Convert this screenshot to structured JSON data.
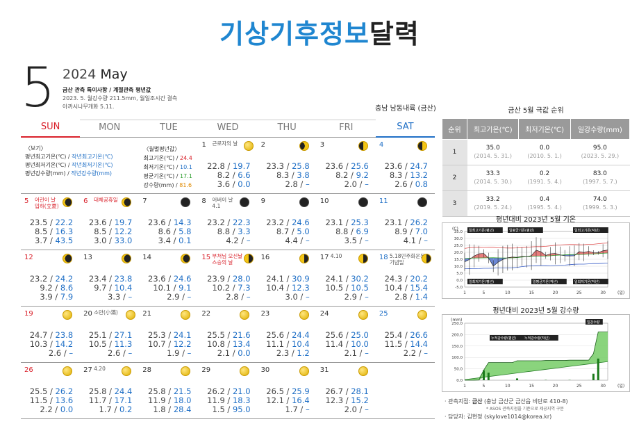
{
  "title_blue": "기상기후정보",
  "title_dark": "달력",
  "month_big": "5",
  "year": "2024",
  "month_name": "May",
  "notes": {
    "heading": "금산 관측 특이사항 / 계절관측 평년값",
    "line1": "2023. 5. 월강수량 211.5mm, 월일조시간 결측",
    "line2": "아까시나무개화 5.11."
  },
  "region": "충남 남동내륙 (금산)",
  "weekdays": [
    "SUN",
    "MON",
    "TUE",
    "WED",
    "THU",
    "FRI",
    "SAT"
  ],
  "legend": {
    "title": "〈보기〉",
    "l1a": "평년최고기온(℃) / ",
    "l1b": "작년최고기온(℃)",
    "l2a": "평년최저기온(℃) / ",
    "l2b": "작년최저기온(℃)",
    "l3a": "평년강수량(mm) / ",
    "l3b": "작년강수량(mm)"
  },
  "monthly": {
    "title": "〈월별평년값〉",
    "r1": "최고기온(℃) /",
    "v1": "24.4",
    "r2": "최저기온(℃) /",
    "v2": "10.1",
    "r3": "평균기온(℃) /",
    "v3": "17.1",
    "r4": "강수량(mm) /",
    "v4": "81.6"
  },
  "days": [
    {
      "d": "1",
      "hol": "근로자의 날",
      "hi": "22.8",
      "hi2": "19.7",
      "lo": "8.2",
      "lo2": "6.6",
      "pr": "3.6",
      "pr2": "0.0"
    },
    {
      "d": "2",
      "hol": "",
      "hi": "23.3",
      "hi2": "25.8",
      "lo": "8.3",
      "lo2": "3.8",
      "pr": "2.8",
      "pr2": "–"
    },
    {
      "d": "3",
      "hol": "",
      "hi": "23.6",
      "hi2": "25.6",
      "lo": "8.2",
      "lo2": "9.2",
      "pr": "2.0",
      "pr2": "–"
    },
    {
      "d": "4",
      "hol": "",
      "hi": "23.6",
      "hi2": "24.7",
      "lo": "8.3",
      "lo2": "13.2",
      "pr": "2.6",
      "pr2": "0.8"
    },
    {
      "d": "5",
      "hol": "어린이 날",
      "hol2": "입하(立夏)",
      "hi": "23.5",
      "hi2": "22.2",
      "lo": "8.5",
      "lo2": "16.3",
      "pr": "3.7",
      "pr2": "43.5"
    },
    {
      "d": "6",
      "hol": "대체공휴일",
      "hi": "23.6",
      "hi2": "19.7",
      "lo": "8.5",
      "lo2": "12.2",
      "pr": "3.0",
      "pr2": "33.0"
    },
    {
      "d": "7",
      "hol": "",
      "hi": "23.6",
      "hi2": "14.3",
      "lo": "8.6",
      "lo2": "5.8",
      "pr": "3.4",
      "pr2": "0.1"
    },
    {
      "d": "8",
      "hol": "어버이 날",
      "hol2": "4.1",
      "hi": "23.2",
      "hi2": "22.3",
      "lo": "8.8",
      "lo2": "3.3",
      "pr": "4.2",
      "pr2": "–"
    },
    {
      "d": "9",
      "hol": "",
      "hi": "23.2",
      "hi2": "24.6",
      "lo": "8.7",
      "lo2": "5.0",
      "pr": "4.4",
      "pr2": "–"
    },
    {
      "d": "10",
      "hol": "",
      "hi": "23.1",
      "hi2": "25.3",
      "lo": "8.8",
      "lo2": "6.9",
      "pr": "3.5",
      "pr2": "–"
    },
    {
      "d": "11",
      "hol": "",
      "hi": "23.1",
      "hi2": "26.2",
      "lo": "8.9",
      "lo2": "7.0",
      "pr": "4.1",
      "pr2": "–"
    },
    {
      "d": "12",
      "hol": "",
      "hi": "23.2",
      "hi2": "24.2",
      "lo": "9.2",
      "lo2": "8.6",
      "pr": "3.9",
      "pr2": "7.9"
    },
    {
      "d": "13",
      "hol": "",
      "hi": "23.4",
      "hi2": "23.8",
      "lo": "9.7",
      "lo2": "10.4",
      "pr": "3.3",
      "pr2": "–"
    },
    {
      "d": "14",
      "hol": "",
      "hi": "23.6",
      "hi2": "24.6",
      "lo": "10.1",
      "lo2": "9.1",
      "pr": "2.9",
      "pr2": "–"
    },
    {
      "d": "15",
      "hol": "부처님 오신날",
      "hol2": "스승의 날",
      "hi": "23.9",
      "hi2": "28.0",
      "lo": "10.2",
      "lo2": "7.3",
      "pr": "2.8",
      "pr2": "–"
    },
    {
      "d": "16",
      "hol": "",
      "hi": "24.1",
      "hi2": "30.9",
      "lo": "10.4",
      "lo2": "12.3",
      "pr": "3.0",
      "pr2": "–"
    },
    {
      "d": "17",
      "hol": "4.10",
      "hi": "24.1",
      "hi2": "30.2",
      "lo": "10.5",
      "lo2": "10.5",
      "pr": "2.9",
      "pr2": "–"
    },
    {
      "d": "18",
      "hol": "5.18민주화운동",
      "hol2": "기념일",
      "hi": "24.3",
      "hi2": "20.2",
      "lo": "10.4",
      "lo2": "15.4",
      "pr": "2.8",
      "pr2": "1.4"
    },
    {
      "d": "19",
      "hol": "",
      "hi": "24.7",
      "hi2": "23.8",
      "lo": "10.3",
      "lo2": "14.2",
      "pr": "2.6",
      "pr2": "–"
    },
    {
      "d": "20",
      "hol": "소만(小滿)",
      "hi": "25.1",
      "hi2": "27.1",
      "lo": "10.5",
      "lo2": "11.3",
      "pr": "2.6",
      "pr2": "–"
    },
    {
      "d": "21",
      "hol": "",
      "hi": "25.3",
      "hi2": "24.1",
      "lo": "10.7",
      "lo2": "12.2",
      "pr": "1.9",
      "pr2": "–"
    },
    {
      "d": "22",
      "hol": "",
      "hi": "25.5",
      "hi2": "21.6",
      "lo": "10.8",
      "lo2": "13.4",
      "pr": "2.1",
      "pr2": "0.0"
    },
    {
      "d": "23",
      "hol": "",
      "hi": "25.6",
      "hi2": "24.4",
      "lo": "11.1",
      "lo2": "10.4",
      "pr": "2.3",
      "pr2": "1.2"
    },
    {
      "d": "24",
      "hol": "",
      "hi": "25.6",
      "hi2": "25.0",
      "lo": "11.4",
      "lo2": "10.0",
      "pr": "2.1",
      "pr2": "–"
    },
    {
      "d": "25",
      "hol": "",
      "hi": "25.4",
      "hi2": "26.6",
      "lo": "11.5",
      "lo2": "14.4",
      "pr": "2.2",
      "pr2": "–"
    },
    {
      "d": "26",
      "hol": "",
      "hi": "25.5",
      "hi2": "26.2",
      "lo": "11.5",
      "lo2": "13.6",
      "pr": "2.2",
      "pr2": "0.0"
    },
    {
      "d": "27",
      "hol": "4.20",
      "hi": "25.8",
      "hi2": "24.4",
      "lo": "11.7",
      "lo2": "17.1",
      "pr": "1.7",
      "pr2": "0.2"
    },
    {
      "d": "28",
      "hol": "",
      "hi": "25.8",
      "hi2": "21.5",
      "lo": "11.9",
      "lo2": "18.0",
      "pr": "1.8",
      "pr2": "28.4"
    },
    {
      "d": "29",
      "hol": "",
      "hi": "26.2",
      "hi2": "21.0",
      "lo": "11.9",
      "lo2": "18.3",
      "pr": "1.5",
      "pr2": "95.0"
    },
    {
      "d": "30",
      "hol": "",
      "hi": "26.5",
      "hi2": "25.9",
      "lo": "12.1",
      "lo2": "16.4",
      "pr": "1.7",
      "pr2": "–"
    },
    {
      "d": "31",
      "hol": "",
      "hi": "26.7",
      "hi2": "28.1",
      "lo": "12.3",
      "lo2": "15.2",
      "pr": "2.0",
      "pr2": "–"
    }
  ],
  "extremes": {
    "title": "금산 5월 극값 순위",
    "headers": [
      "순위",
      "최고기온(℃)",
      "최저기온(℃)",
      "일강수량(mm)"
    ],
    "rows": [
      {
        "rank": "1",
        "hi": "35.0",
        "hid": "(2014. 5. 31.)",
        "lo": "0.0",
        "lod": "(2010. 5. 1.)",
        "pr": "95.0",
        "prd": "(2023. 5. 29.)"
      },
      {
        "rank": "2",
        "hi": "33.3",
        "hid": "(2014. 5. 30.)",
        "lo": "0.2",
        "lod": "(1991. 5. 4.)",
        "pr": "83.0",
        "prd": "(1997. 5. 7.)"
      },
      {
        "rank": "3",
        "hi": "33.2",
        "hid": "(2019. 5. 24.)",
        "lo": "0.4",
        "lod": "(1995. 5. 4.)",
        "pr": "74.0",
        "prd": "(1999. 5. 3.)"
      }
    ]
  },
  "temp_chart_title": "평년대비 2023년 5월 기온",
  "rain_chart_title": "평년대비 2023년 5월 강수량",
  "chart_data": [
    {
      "type": "line",
      "title": "평년대비 2023년 5월 기온",
      "ylabel": "(C)",
      "xlabel": "(일)",
      "ylim": [
        -5,
        35
      ],
      "yticks": [
        "35.0",
        "30.0",
        "25.0",
        "20.0",
        "15.0",
        "10.0",
        "5.0",
        "0.0",
        "-5.0"
      ],
      "xticks": [
        "1",
        "5",
        "10",
        "15",
        "20",
        "25",
        "30"
      ],
      "legend": [
        "일최고기온(평년)",
        "일평균기온(평년)",
        "일최고기온(작년)",
        "일최저기온(평년)",
        "일평균기온(작년)",
        "일최저기온(작년)"
      ],
      "x": [
        1,
        2,
        3,
        4,
        5,
        6,
        7,
        8,
        9,
        10,
        11,
        12,
        13,
        14,
        15,
        16,
        17,
        18,
        19,
        20,
        21,
        22,
        23,
        24,
        25,
        26,
        27,
        28,
        29,
        30,
        31
      ],
      "series": [
        {
          "name": "일최고기온(평년)",
          "values": [
            22.8,
            23.3,
            23.6,
            23.6,
            23.5,
            23.6,
            23.6,
            23.2,
            23.2,
            23.1,
            23.1,
            23.2,
            23.4,
            23.6,
            23.9,
            24.1,
            24.1,
            24.3,
            24.7,
            25.1,
            25.3,
            25.5,
            25.6,
            25.6,
            25.4,
            25.5,
            25.8,
            25.8,
            26.2,
            26.5,
            26.7
          ]
        },
        {
          "name": "일최저기온(평년)",
          "values": [
            8.2,
            8.3,
            8.2,
            8.3,
            8.5,
            8.5,
            8.6,
            8.8,
            8.7,
            8.8,
            8.9,
            9.2,
            9.7,
            10.1,
            10.2,
            10.4,
            10.5,
            10.4,
            10.3,
            10.5,
            10.7,
            10.8,
            11.1,
            11.4,
            11.5,
            11.5,
            11.7,
            11.9,
            11.9,
            12.1,
            12.3
          ]
        },
        {
          "name": "일최고기온(작년)",
          "values": [
            19.7,
            25.8,
            25.6,
            24.7,
            22.2,
            19.7,
            14.3,
            22.3,
            24.6,
            25.3,
            26.2,
            24.2,
            23.8,
            24.6,
            28.0,
            30.9,
            30.2,
            20.2,
            23.8,
            27.1,
            24.1,
            21.6,
            24.4,
            25.0,
            26.6,
            26.2,
            24.4,
            21.5,
            21.0,
            25.9,
            28.1
          ]
        },
        {
          "name": "일최저기온(작년)",
          "values": [
            6.6,
            3.8,
            9.2,
            13.2,
            16.3,
            12.2,
            5.8,
            3.3,
            5.0,
            6.9,
            7.0,
            8.6,
            10.4,
            9.1,
            7.3,
            12.3,
            10.5,
            15.4,
            14.2,
            11.3,
            12.2,
            13.4,
            10.4,
            10.0,
            14.4,
            13.6,
            17.1,
            18.0,
            18.3,
            16.4,
            15.2
          ]
        }
      ]
    },
    {
      "type": "area",
      "title": "평년대비 2023년 5월 강수량",
      "ylabel": "(mm)",
      "xlabel": "(일)",
      "ylim": [
        0,
        250
      ],
      "yticks": [
        "250.0",
        "200.0",
        "150.0",
        "100.0",
        "50.0",
        "0.0"
      ],
      "xticks": [
        "1",
        "5",
        "10",
        "15",
        "20",
        "25",
        "30"
      ],
      "legend": [
        "누적강수량(평년)",
        "누적강수량(작년)",
        "일강수량"
      ],
      "x": [
        1,
        2,
        3,
        4,
        5,
        6,
        7,
        8,
        9,
        10,
        11,
        12,
        13,
        14,
        15,
        16,
        17,
        18,
        19,
        20,
        21,
        22,
        23,
        24,
        25,
        26,
        27,
        28,
        29,
        30,
        31
      ],
      "series": [
        {
          "name": "일강수량",
          "values": [
            0,
            0,
            0,
            0.8,
            43.5,
            33.0,
            0.1,
            0,
            0,
            0,
            0,
            7.9,
            0,
            0,
            0,
            0,
            0,
            1.4,
            0,
            0,
            0,
            0,
            1.2,
            0,
            0,
            0,
            0.2,
            28.4,
            95.0,
            0,
            0
          ]
        }
      ]
    }
  ],
  "foot": {
    "l1a": "관측지점: ",
    "l1b": "금산",
    "l1c": " (충남 금산군 금산읍 비단로 410-8)",
    "l2": "* ASOS 관측지점을 기준으로 제공지역 구분",
    "l3": "담당자: 김현정 (skylove1014@korea.kr)"
  }
}
